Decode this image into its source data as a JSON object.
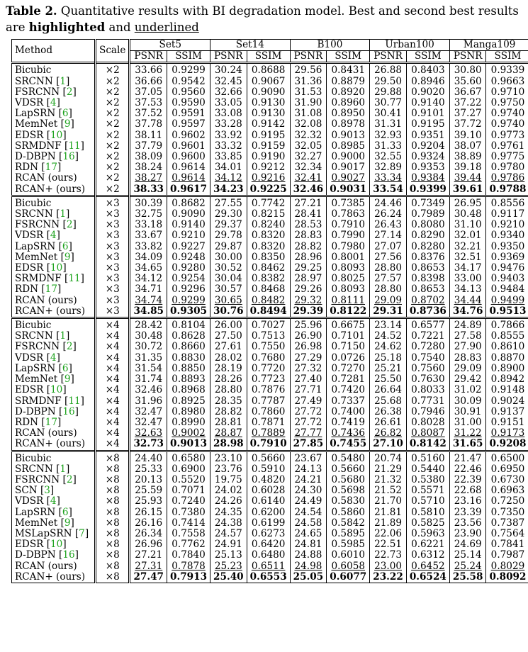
{
  "caption": {
    "label": "Table 2.",
    "text_1": " Quantitative results with BI degradation model. Best and second best results are ",
    "highlighted": "highlighted",
    "text_2": " and ",
    "underlined": "underlined"
  },
  "header": {
    "method": "Method",
    "scale": "Scale",
    "datasets": [
      "Set5",
      "Set14",
      "B100",
      "Urban100",
      "Manga109"
    ],
    "psnr": "PSNR",
    "ssim": "SSIM"
  },
  "groups": [
    {
      "scale": "×2",
      "rows": [
        {
          "name": "Bicubic",
          "ref": "",
          "v": [
            "33.66",
            "0.9299",
            "30.24",
            "0.8688",
            "29.56",
            "0.8431",
            "26.88",
            "0.8403",
            "30.80",
            "0.9339"
          ],
          "style": ""
        },
        {
          "name": "SRCNN ",
          "ref": "1",
          "v": [
            "36.66",
            "0.9542",
            "32.45",
            "0.9067",
            "31.36",
            "0.8879",
            "29.50",
            "0.8946",
            "35.60",
            "0.9663"
          ],
          "style": ""
        },
        {
          "name": "FSRCNN ",
          "ref": "2",
          "v": [
            "37.05",
            "0.9560",
            "32.66",
            "0.9090",
            "31.53",
            "0.8920",
            "29.88",
            "0.9020",
            "36.67",
            "0.9710"
          ],
          "style": ""
        },
        {
          "name": "VDSR ",
          "ref": "4",
          "v": [
            "37.53",
            "0.9590",
            "33.05",
            "0.9130",
            "31.90",
            "0.8960",
            "30.77",
            "0.9140",
            "37.22",
            "0.9750"
          ],
          "style": ""
        },
        {
          "name": "LapSRN ",
          "ref": "6",
          "v": [
            "37.52",
            "0.9591",
            "33.08",
            "0.9130",
            "31.08",
            "0.8950",
            "30.41",
            "0.9101",
            "37.27",
            "0.9740"
          ],
          "style": ""
        },
        {
          "name": "MemNet ",
          "ref": "9",
          "v": [
            "37.78",
            "0.9597",
            "33.28",
            "0.9142",
            "32.08",
            "0.8978",
            "31.31",
            "0.9195",
            "37.72",
            "0.9740"
          ],
          "style": ""
        },
        {
          "name": "EDSR ",
          "ref": "10",
          "v": [
            "38.11",
            "0.9602",
            "33.92",
            "0.9195",
            "32.32",
            "0.9013",
            "32.93",
            "0.9351",
            "39.10",
            "0.9773"
          ],
          "style": ""
        },
        {
          "name": "SRMDNF ",
          "ref": "11",
          "v": [
            "37.79",
            "0.9601",
            "33.32",
            "0.9159",
            "32.05",
            "0.8985",
            "31.33",
            "0.9204",
            "38.07",
            "0.9761"
          ],
          "style": ""
        },
        {
          "name": "D-DBPN ",
          "ref": "16",
          "v": [
            "38.09",
            "0.9600",
            "33.85",
            "0.9190",
            "32.27",
            "0.9000",
            "32.55",
            "0.9324",
            "38.89",
            "0.9775"
          ],
          "style": ""
        },
        {
          "name": "RDN ",
          "ref": "17",
          "v": [
            "38.24",
            "0.9614",
            "34.01",
            "0.9212",
            "32.34",
            "0.9017",
            "32.89",
            "0.9353",
            "39.18",
            "0.9780"
          ],
          "style": ""
        },
        {
          "name": "RCAN (ours)",
          "ref": "",
          "v": [
            "38.27",
            "0.9614",
            "34.12",
            "0.9216",
            "32.41",
            "0.9027",
            "33.34",
            "0.9384",
            "39.44",
            "0.9786"
          ],
          "style": "second"
        },
        {
          "name": "RCAN+ (ours)",
          "ref": "",
          "v": [
            "38.33",
            "0.9617",
            "34.23",
            "0.9225",
            "32.46",
            "0.9031",
            "33.54",
            "0.9399",
            "39.61",
            "0.9788"
          ],
          "style": "best"
        }
      ]
    },
    {
      "scale": "×3",
      "rows": [
        {
          "name": "Bicubic",
          "ref": "",
          "v": [
            "30.39",
            "0.8682",
            "27.55",
            "0.7742",
            "27.21",
            "0.7385",
            "24.46",
            "0.7349",
            "26.95",
            "0.8556"
          ],
          "style": ""
        },
        {
          "name": "SRCNN ",
          "ref": "1",
          "v": [
            "32.75",
            "0.9090",
            "29.30",
            "0.8215",
            "28.41",
            "0.7863",
            "26.24",
            "0.7989",
            "30.48",
            "0.9117"
          ],
          "style": ""
        },
        {
          "name": "FSRCNN ",
          "ref": "2",
          "v": [
            "33.18",
            "0.9140",
            "29.37",
            "0.8240",
            "28.53",
            "0.7910",
            "26.43",
            "0.8080",
            "31.10",
            "0.9210"
          ],
          "style": ""
        },
        {
          "name": "VDSR ",
          "ref": "4",
          "v": [
            "33.67",
            "0.9210",
            "29.78",
            "0.8320",
            "28.83",
            "0.7990",
            "27.14",
            "0.8290",
            "32.01",
            "0.9340"
          ],
          "style": ""
        },
        {
          "name": "LapSRN ",
          "ref": "6",
          "v": [
            "33.82",
            "0.9227",
            "29.87",
            "0.8320",
            "28.82",
            "0.7980",
            "27.07",
            "0.8280",
            "32.21",
            "0.9350"
          ],
          "style": ""
        },
        {
          "name": "MemNet ",
          "ref": "9",
          "v": [
            "34.09",
            "0.9248",
            "30.00",
            "0.8350",
            "28.96",
            "0.8001",
            "27.56",
            "0.8376",
            "32.51",
            "0.9369"
          ],
          "style": ""
        },
        {
          "name": "EDSR ",
          "ref": "10",
          "v": [
            "34.65",
            "0.9280",
            "30.52",
            "0.8462",
            "29.25",
            "0.8093",
            "28.80",
            "0.8653",
            "34.17",
            "0.9476"
          ],
          "style": ""
        },
        {
          "name": "SRMDNF ",
          "ref": "11",
          "v": [
            "34.12",
            "0.9254",
            "30.04",
            "0.8382",
            "28.97",
            "0.8025",
            "27.57",
            "0.8398",
            "33.00",
            "0.9403"
          ],
          "style": ""
        },
        {
          "name": "RDN ",
          "ref": "17",
          "v": [
            "34.71",
            "0.9296",
            "30.57",
            "0.8468",
            "29.26",
            "0.8093",
            "28.80",
            "0.8653",
            "34.13",
            "0.9484"
          ],
          "style": ""
        },
        {
          "name": "RCAN (ours)",
          "ref": "",
          "v": [
            "34.74",
            "0.9299",
            "30.65",
            "0.8482",
            "29.32",
            "0.8111",
            "29.09",
            "0.8702",
            "34.44",
            "0.9499"
          ],
          "style": "second"
        },
        {
          "name": "RCAN+ (ours)",
          "ref": "",
          "v": [
            "34.85",
            "0.9305",
            "30.76",
            "0.8494",
            "29.39",
            "0.8122",
            "29.31",
            "0.8736",
            "34.76",
            "0.9513"
          ],
          "style": "best"
        }
      ]
    },
    {
      "scale": "×4",
      "rows": [
        {
          "name": "Bicubic",
          "ref": "",
          "v": [
            "28.42",
            "0.8104",
            "26.00",
            "0.7027",
            "25.96",
            "0.6675",
            "23.14",
            "0.6577",
            "24.89",
            "0.7866"
          ],
          "style": ""
        },
        {
          "name": "SRCNN ",
          "ref": "1",
          "v": [
            "30.48",
            "0.8628",
            "27.50",
            "0.7513",
            "26.90",
            "0.7101",
            "24.52",
            "0.7221",
            "27.58",
            "0.8555"
          ],
          "style": ""
        },
        {
          "name": "FSRCNN ",
          "ref": "2",
          "v": [
            "30.72",
            "0.8660",
            "27.61",
            "0.7550",
            "26.98",
            "0.7150",
            "24.62",
            "0.7280",
            "27.90",
            "0.8610"
          ],
          "style": ""
        },
        {
          "name": "VDSR ",
          "ref": "4",
          "v": [
            "31.35",
            "0.8830",
            "28.02",
            "0.7680",
            "27.29",
            "0.0726",
            "25.18",
            "0.7540",
            "28.83",
            "0.8870"
          ],
          "style": ""
        },
        {
          "name": "LapSRN ",
          "ref": "6",
          "v": [
            "31.54",
            "0.8850",
            "28.19",
            "0.7720",
            "27.32",
            "0.7270",
            "25.21",
            "0.7560",
            "29.09",
            "0.8900"
          ],
          "style": ""
        },
        {
          "name": "MemNet ",
          "ref": "9",
          "v": [
            "31.74",
            "0.8893",
            "28.26",
            "0.7723",
            "27.40",
            "0.7281",
            "25.50",
            "0.7630",
            "29.42",
            "0.8942"
          ],
          "style": ""
        },
        {
          "name": "EDSR ",
          "ref": "10",
          "v": [
            "32.46",
            "0.8968",
            "28.80",
            "0.7876",
            "27.71",
            "0.7420",
            "26.64",
            "0.8033",
            "31.02",
            "0.9148"
          ],
          "style": ""
        },
        {
          "name": "SRMDNF ",
          "ref": "11",
          "v": [
            "31.96",
            "0.8925",
            "28.35",
            "0.7787",
            "27.49",
            "0.7337",
            "25.68",
            "0.7731",
            "30.09",
            "0.9024"
          ],
          "style": ""
        },
        {
          "name": "D-DBPN ",
          "ref": "16",
          "v": [
            "32.47",
            "0.8980",
            "28.82",
            "0.7860",
            "27.72",
            "0.7400",
            "26.38",
            "0.7946",
            "30.91",
            "0.9137"
          ],
          "style": ""
        },
        {
          "name": "RDN ",
          "ref": "17",
          "v": [
            "32.47",
            "0.8990",
            "28.81",
            "0.7871",
            "27.72",
            "0.7419",
            "26.61",
            "0.8028",
            "31.00",
            "0.9151"
          ],
          "style": ""
        },
        {
          "name": "RCAN (ours)",
          "ref": "",
          "v": [
            "32.63",
            "0.9002",
            "28.87",
            "0.7889",
            "27.77",
            "0.7436",
            "26.82",
            "0.8087",
            "31.22",
            "0.9173"
          ],
          "style": "second"
        },
        {
          "name": "RCAN+ (ours)",
          "ref": "",
          "v": [
            "32.73",
            "0.9013",
            "28.98",
            "0.7910",
            "27.85",
            "0.7455",
            "27.10",
            "0.8142",
            "31.65",
            "0.9208"
          ],
          "style": "best"
        }
      ]
    },
    {
      "scale": "×8",
      "rows": [
        {
          "name": "Bicubic",
          "ref": "",
          "v": [
            "24.40",
            "0.6580",
            "23.10",
            "0.5660",
            "23.67",
            "0.5480",
            "20.74",
            "0.5160",
            "21.47",
            "0.6500"
          ],
          "style": ""
        },
        {
          "name": "SRCNN ",
          "ref": "1",
          "v": [
            "25.33",
            "0.6900",
            "23.76",
            "0.5910",
            "24.13",
            "0.5660",
            "21.29",
            "0.5440",
            "22.46",
            "0.6950"
          ],
          "style": ""
        },
        {
          "name": "FSRCNN ",
          "ref": "2",
          "v": [
            "20.13",
            "0.5520",
            "19.75",
            "0.4820",
            "24.21",
            "0.5680",
            "21.32",
            "0.5380",
            "22.39",
            "0.6730"
          ],
          "style": ""
        },
        {
          "name": "SCN ",
          "ref": "3",
          "v": [
            "25.59",
            "0.7071",
            "24.02",
            "0.6028",
            "24.30",
            "0.5698",
            "21.52",
            "0.5571",
            "22.68",
            "0.6963"
          ],
          "style": ""
        },
        {
          "name": "VDSR ",
          "ref": "4",
          "v": [
            "25.93",
            "0.7240",
            "24.26",
            "0.6140",
            "24.49",
            "0.5830",
            "21.70",
            "0.5710",
            "23.16",
            "0.7250"
          ],
          "style": ""
        },
        {
          "name": "LapSRN ",
          "ref": "6",
          "v": [
            "26.15",
            "0.7380",
            "24.35",
            "0.6200",
            "24.54",
            "0.5860",
            "21.81",
            "0.5810",
            "23.39",
            "0.7350"
          ],
          "style": ""
        },
        {
          "name": "MemNet ",
          "ref": "9",
          "v": [
            "26.16",
            "0.7414",
            "24.38",
            "0.6199",
            "24.58",
            "0.5842",
            "21.89",
            "0.5825",
            "23.56",
            "0.7387"
          ],
          "style": ""
        },
        {
          "name": "MSLapSRN ",
          "ref": "7",
          "v": [
            "26.34",
            "0.7558",
            "24.57",
            "0.6273",
            "24.65",
            "0.5895",
            "22.06",
            "0.5963",
            "23.90",
            "0.7564"
          ],
          "style": ""
        },
        {
          "name": "EDSR ",
          "ref": "10",
          "v": [
            "26.96",
            "0.7762",
            "24.91",
            "0.6420",
            "24.81",
            "0.5985",
            "22.51",
            "0.6221",
            "24.69",
            "0.7841"
          ],
          "style": ""
        },
        {
          "name": "D-DBPN ",
          "ref": "16",
          "v": [
            "27.21",
            "0.7840",
            "25.13",
            "0.6480",
            "24.88",
            "0.6010",
            "22.73",
            "0.6312",
            "25.14",
            "0.7987"
          ],
          "style": ""
        },
        {
          "name": "RCAN (ours)",
          "ref": "",
          "v": [
            "27.31",
            "0.7878",
            "25.23",
            "0.6511",
            "24.98",
            "0.6058",
            "23.00",
            "0.6452",
            "25.24",
            "0.8029"
          ],
          "style": "second"
        },
        {
          "name": "RCAN+ (ours)",
          "ref": "",
          "v": [
            "27.47",
            "0.7913",
            "25.40",
            "0.6553",
            "25.05",
            "0.6077",
            "23.22",
            "0.6524",
            "25.58",
            "0.8092"
          ],
          "style": "best"
        }
      ]
    }
  ]
}
